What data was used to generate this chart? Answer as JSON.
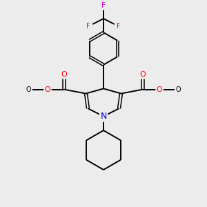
{
  "background_color": "#ececec",
  "bond_color": "#000000",
  "N_color": "#0000cc",
  "O_color": "#ff0000",
  "F_color": "#cc00cc",
  "figsize": [
    3.0,
    3.0
  ],
  "dpi": 100,
  "xlim": [
    0,
    10
  ],
  "ylim": [
    0,
    10
  ]
}
